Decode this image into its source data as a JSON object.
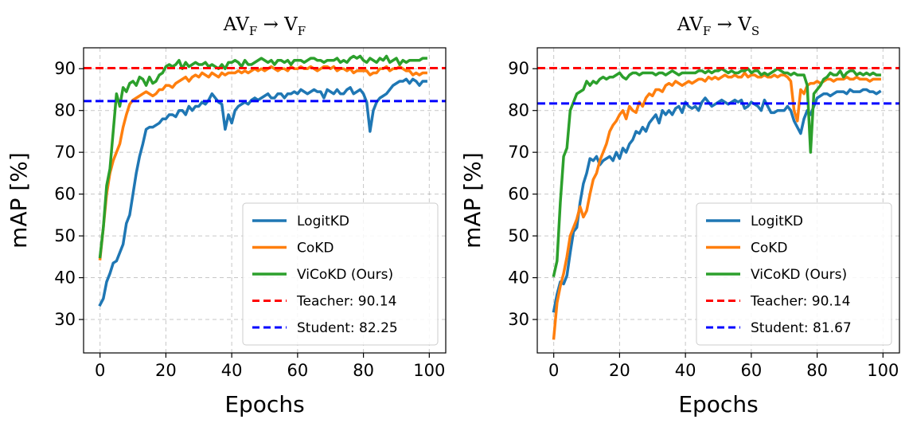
{
  "chart_data": [
    {
      "type": "line",
      "title": "AV_F → V_F",
      "title_parts": {
        "a": "AV",
        "a_sub": "F",
        "arrow": "→",
        "b": "V",
        "b_sub": "F"
      },
      "xlabel": "Epochs",
      "ylabel": "mAP [%]",
      "xlim": [
        -5,
        105
      ],
      "ylim": [
        22,
        95
      ],
      "xticks": [
        0,
        20,
        40,
        60,
        80,
        100
      ],
      "yticks": [
        30,
        40,
        50,
        60,
        70,
        80,
        90
      ],
      "grid": true,
      "legend_position": "lower-right",
      "x": [
        0,
        1,
        2,
        3,
        4,
        5,
        6,
        7,
        8,
        9,
        10,
        11,
        12,
        13,
        14,
        15,
        16,
        17,
        18,
        19,
        20,
        21,
        22,
        23,
        24,
        25,
        26,
        27,
        28,
        29,
        30,
        31,
        32,
        33,
        34,
        35,
        36,
        37,
        38,
        39,
        40,
        41,
        42,
        43,
        44,
        45,
        46,
        47,
        48,
        49,
        50,
        51,
        52,
        53,
        54,
        55,
        56,
        57,
        58,
        59,
        60,
        61,
        62,
        63,
        64,
        65,
        66,
        67,
        68,
        69,
        70,
        71,
        72,
        73,
        74,
        75,
        76,
        77,
        78,
        79,
        80,
        81,
        82,
        83,
        84,
        85,
        86,
        87,
        88,
        89,
        90,
        91,
        92,
        93,
        94,
        95,
        96,
        97,
        98,
        99
      ],
      "series": [
        {
          "name": "LogitKD",
          "color": "#1f77b4",
          "values": [
            33.5,
            35,
            39,
            41,
            43.5,
            44,
            46,
            48,
            53,
            55,
            60,
            65,
            69,
            72,
            75.5,
            76,
            76,
            76.5,
            77,
            78,
            78,
            79,
            79,
            78.5,
            80,
            80,
            79,
            81,
            80,
            81,
            81,
            82,
            81.5,
            82.5,
            84,
            83,
            82,
            81.5,
            75.5,
            79,
            77,
            80,
            81,
            81.5,
            82,
            81.5,
            82.5,
            83,
            82.5,
            83,
            83.5,
            84,
            83,
            83,
            84,
            84,
            83,
            84,
            84,
            84.5,
            84,
            85,
            84.5,
            84,
            84.5,
            85,
            84.5,
            84.5,
            83,
            85,
            84.5,
            84,
            85,
            84,
            84,
            85,
            85.5,
            84,
            84.5,
            85,
            84,
            82,
            75,
            80,
            82,
            83,
            83.5,
            84,
            85,
            86,
            86.5,
            87,
            87,
            87.5,
            86.5,
            87.5,
            87,
            86,
            87,
            87
          ]
        },
        {
          "name": "CoKD",
          "color": "#ff7f0e",
          "values": [
            44.5,
            52,
            60,
            65,
            68,
            70,
            72,
            76,
            79,
            81.5,
            82.5,
            83,
            83.5,
            84,
            84.5,
            84,
            83.5,
            84,
            85,
            85,
            86,
            86,
            85.5,
            86.5,
            87,
            87.5,
            88,
            87,
            88,
            88.5,
            88,
            89,
            88.5,
            88,
            89,
            88.5,
            88,
            89,
            88.5,
            89,
            89,
            89,
            89.5,
            89,
            89.5,
            89,
            89.5,
            90,
            89.5,
            90,
            89.5,
            90,
            90.5,
            90,
            89.5,
            90,
            90,
            89.5,
            90.5,
            90,
            90,
            90.5,
            90,
            90,
            90.5,
            90,
            89.5,
            90,
            90.5,
            90.5,
            90,
            90.5,
            89.5,
            90,
            90,
            89.5,
            90,
            89,
            89.5,
            89.5,
            89.5,
            89.5,
            88.5,
            89,
            89,
            90,
            90,
            90.5,
            89.5,
            90,
            90,
            90.5,
            90,
            89.5,
            89.5,
            88.5,
            89,
            88.5,
            89,
            89
          ]
        },
        {
          "name": "ViCoKD (Ours)",
          "color": "#2ca02c",
          "values": [
            45,
            52,
            62,
            66,
            75,
            84,
            81,
            85.5,
            84.5,
            86.5,
            87,
            86,
            88,
            87.5,
            86,
            88,
            86.5,
            87,
            88.5,
            89,
            90.5,
            91,
            90.5,
            91,
            92,
            90,
            91.5,
            90.5,
            91,
            91.5,
            91,
            91,
            91.5,
            90.5,
            91,
            90.5,
            90,
            91,
            90,
            91.5,
            91.5,
            92,
            91.5,
            90.5,
            92,
            91,
            91,
            91.5,
            92,
            92.5,
            92,
            91.5,
            92,
            91,
            92,
            92,
            91.5,
            92,
            91,
            92,
            92,
            92,
            91.5,
            92,
            92.5,
            92.5,
            92,
            92,
            91.5,
            92,
            92,
            92,
            92.5,
            91.5,
            92,
            91.5,
            92.5,
            93,
            92.5,
            93,
            92,
            91.5,
            92.5,
            92,
            91.5,
            92.5,
            92,
            93,
            91.5,
            92,
            92.5,
            91,
            92,
            91.5,
            92,
            92,
            92,
            92,
            92.5,
            92.5
          ]
        }
      ],
      "reference_lines": [
        {
          "name": "Teacher: 90.14",
          "value": 90.14,
          "color": "#ff0000",
          "style": "dashed"
        },
        {
          "name": "Student: 82.25",
          "value": 82.25,
          "color": "#0000ff",
          "style": "dashed"
        }
      ]
    },
    {
      "type": "line",
      "title": "AV_F → V_S",
      "title_parts": {
        "a": "AV",
        "a_sub": "F",
        "arrow": "→",
        "b": "V",
        "b_sub": "S"
      },
      "xlabel": "Epochs",
      "ylabel": "mAP [%]",
      "xlim": [
        -5,
        105
      ],
      "ylim": [
        22,
        95
      ],
      "xticks": [
        0,
        20,
        40,
        60,
        80,
        100
      ],
      "yticks": [
        30,
        40,
        50,
        60,
        70,
        80,
        90
      ],
      "grid": true,
      "legend_position": "lower-right",
      "x": [
        0,
        1,
        2,
        3,
        4,
        5,
        6,
        7,
        8,
        9,
        10,
        11,
        12,
        13,
        14,
        15,
        16,
        17,
        18,
        19,
        20,
        21,
        22,
        23,
        24,
        25,
        26,
        27,
        28,
        29,
        30,
        31,
        32,
        33,
        34,
        35,
        36,
        37,
        38,
        39,
        40,
        41,
        42,
        43,
        44,
        45,
        46,
        47,
        48,
        49,
        50,
        51,
        52,
        53,
        54,
        55,
        56,
        57,
        58,
        59,
        60,
        61,
        62,
        63,
        64,
        65,
        66,
        67,
        68,
        69,
        70,
        71,
        72,
        73,
        74,
        75,
        76,
        77,
        78,
        79,
        80,
        81,
        82,
        83,
        84,
        85,
        86,
        87,
        88,
        89,
        90,
        91,
        92,
        93,
        94,
        95,
        96,
        97,
        98,
        99
      ],
      "series": [
        {
          "name": "LogitKD",
          "color": "#1f77b4",
          "values": [
            32,
            36,
            39,
            38.5,
            40.5,
            46,
            51,
            52,
            58,
            62.5,
            65,
            68.5,
            68,
            69,
            67,
            68,
            68.5,
            69,
            68,
            70,
            68.5,
            71,
            70,
            72,
            73,
            75,
            74.5,
            76,
            75,
            77,
            78,
            79,
            77,
            80,
            79,
            80,
            79,
            80.5,
            81,
            79.5,
            82,
            81,
            80.5,
            81,
            80,
            82,
            83,
            82,
            81,
            81.5,
            82,
            82.5,
            82,
            81.5,
            82,
            82.5,
            82,
            82.5,
            80.5,
            81,
            82,
            81.5,
            81,
            80,
            82.5,
            81,
            79.5,
            79.5,
            80,
            80,
            80,
            81,
            80,
            77.5,
            76,
            74.5,
            78,
            80,
            79,
            81,
            83,
            83.5,
            84,
            84,
            83.5,
            84,
            84.5,
            84.5,
            84.5,
            84,
            85,
            84.5,
            84.5,
            84.5,
            85,
            85,
            84.5,
            84.5,
            84,
            84.5
          ]
        },
        {
          "name": "CoKD",
          "color": "#ff7f0e",
          "values": [
            25.5,
            34,
            38,
            41,
            45,
            50,
            52,
            54,
            57,
            54.5,
            56,
            60,
            63.5,
            65,
            68,
            70,
            72,
            75,
            76.5,
            77.5,
            79,
            80,
            78,
            81,
            80,
            79.5,
            82,
            81,
            83,
            84,
            83.5,
            85,
            85,
            84.5,
            86,
            86.5,
            86,
            87,
            86.5,
            86,
            86.5,
            87,
            86.5,
            87,
            87.5,
            87.5,
            87,
            88,
            87.5,
            88,
            87.5,
            88,
            88.5,
            88,
            88,
            88.5,
            88,
            88,
            89,
            88,
            88.5,
            88.5,
            88,
            88,
            88.5,
            88,
            88,
            88.5,
            88,
            88.5,
            88.5,
            88,
            87,
            80,
            77.5,
            85,
            84,
            86,
            86.5,
            86.5,
            87,
            86.5,
            87,
            87.5,
            87.5,
            87,
            87.5,
            87.5,
            87.5,
            88,
            87.5,
            87.5,
            88,
            87.5,
            87.5,
            87.5,
            87,
            87.5,
            87.5,
            87.5
          ]
        },
        {
          "name": "ViCoKD (Ours)",
          "color": "#2ca02c",
          "values": [
            40.5,
            44,
            58,
            69,
            71,
            80,
            82,
            84,
            84.5,
            85,
            87,
            86,
            87,
            86.5,
            87.5,
            88,
            87.5,
            88,
            88,
            88.5,
            89,
            88,
            87.5,
            88.5,
            89,
            89,
            88.5,
            89,
            89,
            89,
            89,
            88.5,
            89,
            89,
            88.5,
            89,
            89.5,
            89,
            88.5,
            89,
            89,
            89,
            89,
            89,
            89.5,
            89.5,
            89,
            89.5,
            89,
            89.5,
            89.5,
            90,
            89.5,
            89,
            89.5,
            89,
            89,
            89.5,
            89.5,
            90,
            89,
            89.5,
            89.5,
            88.5,
            89,
            88.5,
            89,
            89.5,
            90,
            89.5,
            89,
            89,
            88.5,
            89,
            88.5,
            88.5,
            88.5,
            86,
            70,
            84,
            85,
            86,
            87.5,
            88,
            89,
            88.5,
            88.5,
            89.5,
            88,
            89,
            89.5,
            89.5,
            88.5,
            89,
            88.5,
            89,
            88.5,
            89,
            88.5,
            88.5
          ]
        }
      ],
      "reference_lines": [
        {
          "name": "Teacher: 90.14",
          "value": 90.14,
          "color": "#ff0000",
          "style": "dashed"
        },
        {
          "name": "Student: 81.67",
          "value": 81.67,
          "color": "#0000ff",
          "style": "dashed"
        }
      ]
    }
  ]
}
